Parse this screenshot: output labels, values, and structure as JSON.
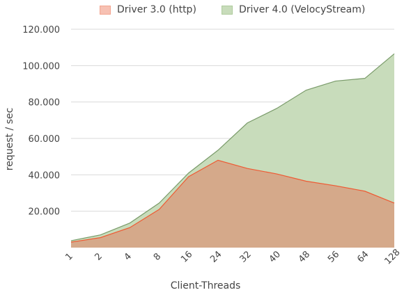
{
  "chart_data": {
    "type": "area",
    "title": "",
    "xlabel": "Client-Threads",
    "ylabel": "request / sec",
    "categories": [
      "1",
      "2",
      "4",
      "8",
      "16",
      "24",
      "32",
      "40",
      "48",
      "56",
      "64",
      "128"
    ],
    "series": [
      {
        "name": "Driver 3.0 (http)",
        "color": "#d5a98a",
        "line_color": "#ee5a33",
        "legend_color": "#f7c1b3",
        "values": [
          3000,
          5500,
          11000,
          21000,
          39000,
          48000,
          43500,
          40500,
          36500,
          34000,
          31000,
          24500
        ]
      },
      {
        "name": "Driver 4.0 (VelocyStream)",
        "color": "#c8dcbb",
        "line_color": "#7a9b6a",
        "legend_color": "#c8dcbb",
        "values": [
          3800,
          7000,
          13500,
          24500,
          41000,
          53500,
          68500,
          76500,
          86500,
          91500,
          93000,
          106500
        ]
      }
    ],
    "yticks": [
      "20.000",
      "40.000",
      "60.000",
      "80.000",
      "100.000",
      "120.000"
    ],
    "ytick_values": [
      20000,
      40000,
      60000,
      80000,
      100000,
      120000
    ],
    "ylim": [
      0,
      120000
    ],
    "grid": true,
    "legend_position": "top-center"
  }
}
